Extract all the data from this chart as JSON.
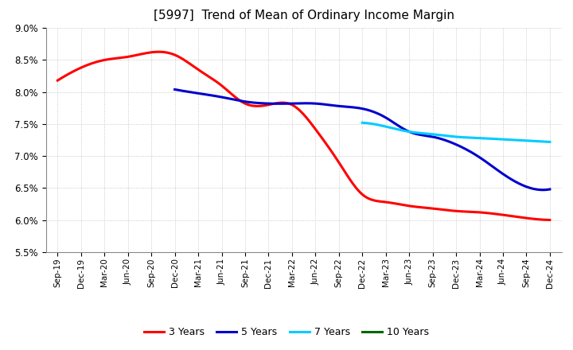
{
  "title": "[5997]  Trend of Mean of Ordinary Income Margin",
  "x_labels": [
    "Sep-19",
    "Dec-19",
    "Mar-20",
    "Jun-20",
    "Sep-20",
    "Dec-20",
    "Mar-21",
    "Jun-21",
    "Sep-21",
    "Dec-21",
    "Mar-22",
    "Jun-22",
    "Sep-22",
    "Dec-22",
    "Mar-23",
    "Jun-23",
    "Sep-23",
    "Dec-23",
    "Mar-24",
    "Jun-24",
    "Sep-24",
    "Dec-24"
  ],
  "ylim": [
    0.055,
    0.09
  ],
  "yticks": [
    0.055,
    0.06,
    0.065,
    0.07,
    0.075,
    0.08,
    0.085,
    0.09
  ],
  "series": {
    "3 Years": {
      "color": "#FF0000",
      "indices": [
        0,
        1,
        2,
        3,
        4,
        5,
        6,
        7,
        8,
        9,
        10,
        11,
        12,
        13,
        14,
        15,
        16,
        17,
        18,
        19,
        20,
        21
      ],
      "values": [
        0.0818,
        0.0838,
        0.085,
        0.0855,
        0.0862,
        0.0858,
        0.0835,
        0.081,
        0.0782,
        0.078,
        0.078,
        0.0742,
        0.069,
        0.064,
        0.0628,
        0.0622,
        0.0618,
        0.0614,
        0.0612,
        0.0608,
        0.0603,
        0.06
      ]
    },
    "5 Years": {
      "color": "#0000CC",
      "indices": [
        5,
        6,
        7,
        8,
        9,
        10,
        11,
        12,
        13,
        14,
        15,
        16,
        17,
        18,
        19,
        20,
        21
      ],
      "values": [
        0.0804,
        0.0798,
        0.0792,
        0.0785,
        0.0782,
        0.0782,
        0.0782,
        0.0778,
        0.0774,
        0.076,
        0.0738,
        0.073,
        0.0718,
        0.0698,
        0.0672,
        0.0652,
        0.0648
      ]
    },
    "7 Years": {
      "color": "#00CCFF",
      "indices": [
        13,
        14,
        15,
        16,
        17,
        18,
        19,
        20,
        21
      ],
      "values": [
        0.0752,
        0.0746,
        0.0738,
        0.0734,
        0.073,
        0.0728,
        0.0726,
        0.0724,
        0.0722
      ]
    },
    "10 Years": {
      "color": "#006600",
      "indices": [],
      "values": []
    }
  },
  "legend_order": [
    "3 Years",
    "5 Years",
    "7 Years",
    "10 Years"
  ],
  "background_color": "#FFFFFF",
  "grid_color": "#BBBBBB"
}
